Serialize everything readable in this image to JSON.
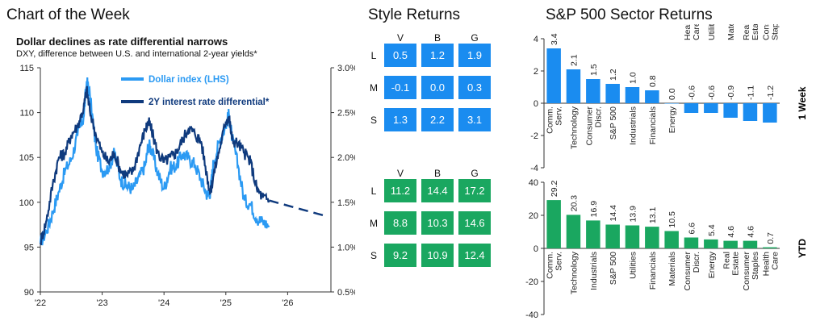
{
  "header": {
    "title": "Chart of the Week"
  },
  "chart_data": [
    {
      "type": "line",
      "title": "Dollar declines as rate differential narrows",
      "subtitle": "DXY, difference between U.S. and international 2-year yields*",
      "x_ticks": [
        "'22",
        "'23",
        "'24",
        "'25",
        "'26"
      ],
      "y_left_ticks": [
        "115",
        "110",
        "105",
        "100",
        "95",
        "90"
      ],
      "y_right_ticks": [
        "3.0%",
        "2.5%",
        "2.0%",
        "1.5%",
        "1.0%",
        "0.5%"
      ],
      "ylim_left": [
        90,
        115
      ],
      "ylim_right": [
        0.5,
        3.0
      ],
      "legend": "top-center",
      "series": [
        {
          "name": "Dollar index (LHS)",
          "color": "#2b9af3",
          "axis": "left",
          "x": [
            2022.0,
            2022.1,
            2022.2,
            2022.3,
            2022.4,
            2022.5,
            2022.6,
            2022.7,
            2022.75,
            2022.8,
            2022.9,
            2023.0,
            2023.1,
            2023.2,
            2023.3,
            2023.4,
            2023.5,
            2023.6,
            2023.7,
            2023.75,
            2023.8,
            2023.9,
            2024.0,
            2024.1,
            2024.2,
            2024.3,
            2024.4,
            2024.5,
            2024.6,
            2024.7,
            2024.75,
            2024.8,
            2024.9,
            2025.0,
            2025.05,
            2025.1,
            2025.2,
            2025.3,
            2025.4,
            2025.5,
            2025.6,
            2025.7
          ],
          "y": [
            95.5,
            96.8,
            98.9,
            101.2,
            103.5,
            104.8,
            107.4,
            109.5,
            113.5,
            112.1,
            106.0,
            103.5,
            103.8,
            105.5,
            102.5,
            101.8,
            101.5,
            102.8,
            104.2,
            106.5,
            105.8,
            103.2,
            101.5,
            103.8,
            104.1,
            105.4,
            104.9,
            104.2,
            102.5,
            100.8,
            101.2,
            104.5,
            106.8,
            108.6,
            109.8,
            107.2,
            104.0,
            100.2,
            99.8,
            98.2,
            97.8,
            97.4
          ]
        },
        {
          "name": "2Y interest rate differential*",
          "color": "#0f3a7d",
          "axis": "right",
          "x": [
            2022.0,
            2022.1,
            2022.2,
            2022.3,
            2022.4,
            2022.5,
            2022.6,
            2022.7,
            2022.75,
            2022.8,
            2022.9,
            2023.0,
            2023.1,
            2023.2,
            2023.3,
            2023.4,
            2023.5,
            2023.6,
            2023.7,
            2023.75,
            2023.8,
            2023.9,
            2024.0,
            2024.1,
            2024.2,
            2024.3,
            2024.4,
            2024.5,
            2024.6,
            2024.7,
            2024.75,
            2024.8,
            2024.9,
            2025.0,
            2025.05,
            2025.1,
            2025.2,
            2025.3,
            2025.4,
            2025.5,
            2025.6,
            2025.7
          ],
          "y": [
            1.05,
            1.3,
            1.7,
            2.0,
            2.05,
            2.25,
            2.35,
            2.55,
            2.76,
            2.52,
            2.25,
            2.05,
            1.95,
            2.05,
            1.85,
            1.8,
            1.85,
            2.1,
            2.32,
            2.4,
            2.3,
            2.05,
            1.95,
            2.0,
            2.06,
            2.2,
            2.33,
            2.26,
            2.18,
            1.78,
            1.6,
            1.8,
            2.1,
            2.4,
            2.46,
            2.2,
            2.15,
            2.05,
            1.95,
            1.65,
            1.55,
            1.52
          ]
        },
        {
          "name": "projection",
          "color": "#0f3a7d",
          "axis": "right",
          "dashed": true,
          "x": [
            2025.7,
            2026.6
          ],
          "y": [
            1.52,
            1.35
          ]
        }
      ]
    },
    {
      "type": "heatmap",
      "title": "Style Returns",
      "columns": [
        "V",
        "B",
        "G"
      ],
      "rows": [
        "L",
        "M",
        "S"
      ],
      "panels": [
        {
          "label": "1 Week",
          "color": "#1a8cf0",
          "values": [
            [
              "0.5",
              "1.2",
              "1.9"
            ],
            [
              "-0.1",
              "0.0",
              "0.3"
            ],
            [
              "1.3",
              "2.2",
              "3.1"
            ]
          ]
        },
        {
          "label": "YTD",
          "color": "#1aa760",
          "values": [
            [
              "11.2",
              "14.4",
              "17.2"
            ],
            [
              "8.8",
              "10.3",
              "14.6"
            ],
            [
              "9.2",
              "10.9",
              "12.4"
            ]
          ]
        }
      ]
    },
    {
      "type": "bar",
      "title": "S&P 500 Sector Returns",
      "panels": [
        {
          "label": "1 Week",
          "color": "#1a8cf0",
          "ylim": [
            -4,
            4
          ],
          "yticks": [
            "4",
            "2",
            "0",
            "-2",
            "-4"
          ],
          "categories": [
            "Comm. Serv.",
            "Technology",
            "Consumer Discr.",
            "S&P 500",
            "Industrials",
            "Financials",
            "Energy",
            "Health Care",
            "Utilities",
            "Materials",
            "Real Estate",
            "Consumer Staples"
          ],
          "values": [
            3.4,
            2.1,
            1.5,
            1.2,
            1.0,
            0.8,
            0.0,
            -0.6,
            -0.6,
            -0.9,
            -1.1,
            -1.2
          ],
          "labels": [
            "3.4",
            "2.1",
            "1.5",
            "1.2",
            "1.0",
            "0.8",
            "0.0",
            "-0.6",
            "-0.6",
            "-0.9",
            "-1.1",
            "-1.2"
          ]
        },
        {
          "label": "YTD",
          "color": "#1aa760",
          "ylim": [
            -40,
            40
          ],
          "yticks": [
            "40",
            "20",
            "0",
            "-20",
            "-40"
          ],
          "categories": [
            "Comm. Serv.",
            "Technology",
            "Industrials",
            "S&P 500",
            "Utilities",
            "Financials",
            "Materials",
            "Consumer Discr.",
            "Energy",
            "Real Estate",
            "Consumer Staples",
            "Health Care"
          ],
          "values": [
            29.2,
            20.3,
            16.9,
            14.4,
            13.9,
            13.1,
            10.5,
            6.6,
            5.4,
            4.6,
            4.6,
            0.7
          ],
          "labels": [
            "29.2",
            "20.3",
            "16.9",
            "14.4",
            "13.9",
            "13.1",
            "10.5",
            "6.6",
            "5.4",
            "4.6",
            "4.6",
            "0.7"
          ]
        }
      ]
    }
  ]
}
